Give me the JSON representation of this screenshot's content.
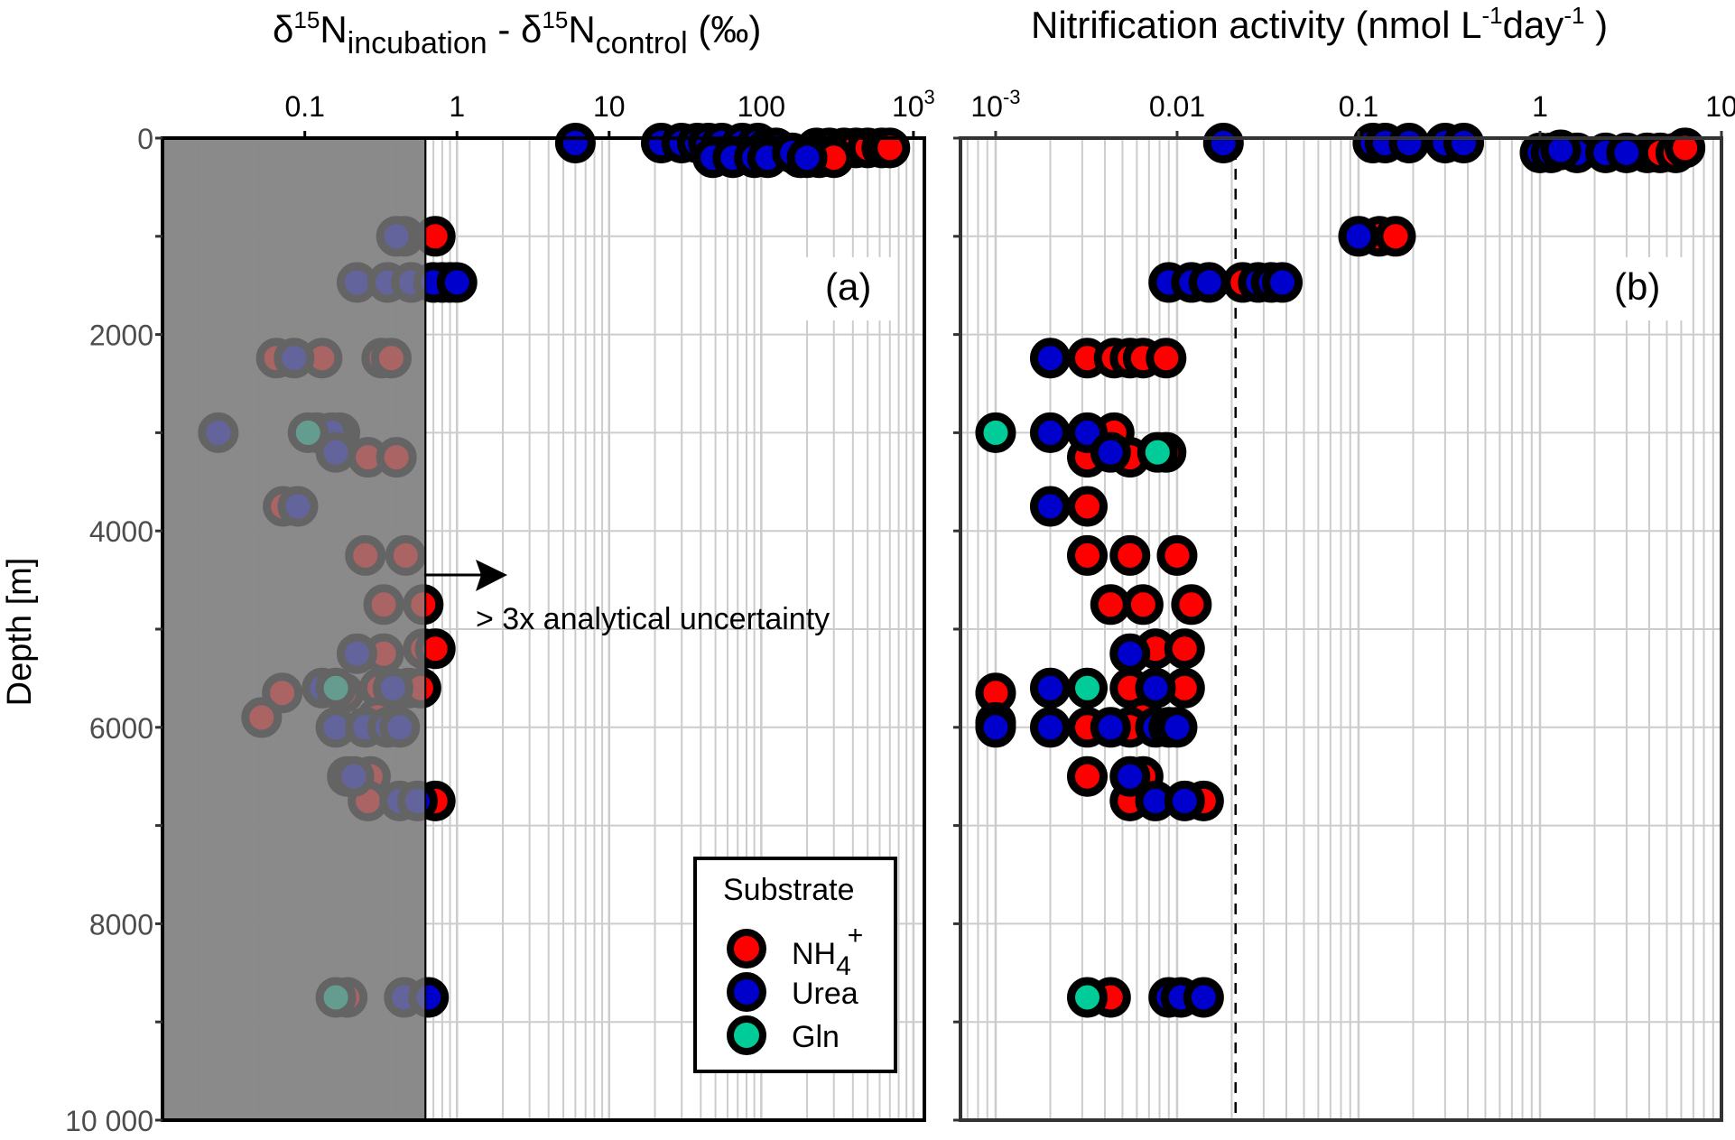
{
  "chart_data": [
    {
      "type": "scatter",
      "panel_label": "(a)",
      "title": "δ15N incubation - δ15N control (‰)",
      "title_parts": {
        "delta": "δ",
        "sup": "15",
        "N": "N",
        "sub1": "incubation",
        "mid": " - ",
        "sub2": "control",
        "unit": " (‰)"
      },
      "xlabel": "δ15N incubation - δ15N control (‰)",
      "ylabel": "Depth [m]",
      "xscale": "log",
      "xlim": [
        0.0116,
        1180
      ],
      "ylim": [
        0,
        10000
      ],
      "y_inverted": true,
      "x_axis_position": "top",
      "x_ticks": [
        {
          "v": 0.1,
          "label": "0.1"
        },
        {
          "v": 1,
          "label": "1"
        },
        {
          "v": 10,
          "label": "10"
        },
        {
          "v": 100,
          "label": "100"
        },
        {
          "v": 1000,
          "label": "10",
          "sup": "3"
        }
      ],
      "y_ticks": [
        {
          "v": 0,
          "label": "0"
        },
        {
          "v": 1000,
          "label": ""
        },
        {
          "v": 2000,
          "label": "2000"
        },
        {
          "v": 3000,
          "label": ""
        },
        {
          "v": 4000,
          "label": "4000"
        },
        {
          "v": 5000,
          "label": ""
        },
        {
          "v": 6000,
          "label": "6000"
        },
        {
          "v": 7000,
          "label": ""
        },
        {
          "v": 8000,
          "label": "8000"
        },
        {
          "v": 9000,
          "label": ""
        },
        {
          "v": 10000,
          "label": "10 000"
        }
      ],
      "grid": true,
      "shaded_region": {
        "x_from": 0.0116,
        "x_to": 0.62,
        "label": "below 3x analytical uncertainty"
      },
      "annotation": {
        "text": "> 3x analytical uncertainty",
        "arrow": "right"
      },
      "series": [
        {
          "name": "NH4+",
          "color": "#ff0000",
          "points": [
            [
              230,
              100
            ],
            [
              280,
              100
            ],
            [
              350,
              100
            ],
            [
              420,
              100
            ],
            [
              500,
              100
            ],
            [
              620,
              100
            ],
            [
              700,
              100
            ],
            [
              180,
              200
            ],
            [
              240,
              200
            ],
            [
              300,
              200
            ],
            [
              0.72,
              1000
            ],
            [
              0.8,
              1470
            ],
            [
              0.9,
              1470
            ],
            [
              0.065,
              2240
            ],
            [
              0.13,
              2240
            ],
            [
              0.32,
              2240
            ],
            [
              0.37,
              2240
            ],
            [
              0.17,
              3000
            ],
            [
              0.26,
              3250
            ],
            [
              0.4,
              3250
            ],
            [
              0.072,
              3750
            ],
            [
              0.25,
              4250
            ],
            [
              0.46,
              4250
            ],
            [
              0.33,
              4750
            ],
            [
              0.6,
              4750
            ],
            [
              0.33,
              5250
            ],
            [
              0.6,
              5200
            ],
            [
              0.72,
              5200
            ],
            [
              0.071,
              5650
            ],
            [
              0.18,
              5650
            ],
            [
              0.31,
              5600
            ],
            [
              0.48,
              5600
            ],
            [
              0.58,
              5600
            ],
            [
              0.3,
              5900
            ],
            [
              0.052,
              5900
            ],
            [
              0.19,
              6500
            ],
            [
              0.27,
              6500
            ],
            [
              0.26,
              6750
            ],
            [
              0.72,
              6750
            ],
            [
              0.19,
              8750
            ]
          ]
        },
        {
          "name": "Urea",
          "color": "#0000cc",
          "points": [
            [
              6,
              50
            ],
            [
              22,
              50
            ],
            [
              30,
              50
            ],
            [
              38,
              50
            ],
            [
              45,
              50
            ],
            [
              55,
              50
            ],
            [
              75,
              50
            ],
            [
              95,
              50
            ],
            [
              110,
              100
            ],
            [
              125,
              100
            ],
            [
              48,
              200
            ],
            [
              65,
              200
            ],
            [
              90,
              200
            ],
            [
              110,
              200
            ],
            [
              160,
              150
            ],
            [
              200,
              200
            ],
            [
              0.45,
              1000
            ],
            [
              0.4,
              1000
            ],
            [
              0.22,
              1470
            ],
            [
              0.35,
              1470
            ],
            [
              0.5,
              1470
            ],
            [
              0.7,
              1470
            ],
            [
              1.0,
              1470
            ],
            [
              0.085,
              2240
            ],
            [
              0.027,
              3000
            ],
            [
              0.12,
              3000
            ],
            [
              0.15,
              3000
            ],
            [
              0.16,
              3200
            ],
            [
              0.09,
              3750
            ],
            [
              0.22,
              5250
            ],
            [
              0.13,
              5600
            ],
            [
              0.38,
              5600
            ],
            [
              0.16,
              6000
            ],
            [
              0.25,
              6000
            ],
            [
              0.35,
              6000
            ],
            [
              0.42,
              6000
            ],
            [
              0.21,
              6500
            ],
            [
              0.42,
              6750
            ],
            [
              0.55,
              6750
            ],
            [
              0.45,
              8750
            ],
            [
              0.65,
              8750
            ]
          ]
        },
        {
          "name": "Gln",
          "color": "#00cc99",
          "points": [
            [
              0.105,
              3000
            ],
            [
              0.16,
              5600
            ],
            [
              0.16,
              8750
            ]
          ]
        }
      ]
    },
    {
      "type": "scatter",
      "panel_label": "(b)",
      "title": "Nitrification activity (nmol L-1 day-1 )",
      "title_parts": {
        "text1": "Nitrification activity (nmol L",
        "sup1": "-1",
        "text2": "day",
        "sup2": "-1",
        "text3": " )"
      },
      "xlabel": "Nitrification activity (nmol L-1 day-1)",
      "ylabel": "Depth [m]",
      "xscale": "log",
      "xlim": [
        0.00064,
        10
      ],
      "ylim": [
        0,
        10000
      ],
      "y_inverted": true,
      "x_axis_position": "top",
      "x_ticks": [
        {
          "v": 0.001,
          "label": "10",
          "sup": "-3"
        },
        {
          "v": 0.01,
          "label": "0.01"
        },
        {
          "v": 0.1,
          "label": "0.1"
        },
        {
          "v": 1,
          "label": "1"
        },
        {
          "v": 10,
          "label": "10"
        }
      ],
      "y_ticks": [
        0,
        1000,
        2000,
        3000,
        4000,
        5000,
        6000,
        7000,
        8000,
        9000,
        10000
      ],
      "grid": true,
      "reference_line": {
        "x": 0.021,
        "style": "dashed"
      },
      "series": [
        {
          "name": "NH4+",
          "color": "#ff0000",
          "points": [
            [
              3.9,
              150
            ],
            [
              4.6,
              150
            ],
            [
              5.6,
              150
            ],
            [
              6.3,
              100
            ],
            [
              0.13,
              1000
            ],
            [
              0.16,
              1000
            ],
            [
              0.023,
              1470
            ],
            [
              0.0032,
              2240
            ],
            [
              0.0045,
              2240
            ],
            [
              0.0055,
              2240
            ],
            [
              0.0065,
              2240
            ],
            [
              0.0087,
              2240
            ],
            [
              0.0045,
              3000
            ],
            [
              0.0032,
              3250
            ],
            [
              0.0055,
              3250
            ],
            [
              0.0087,
              3200
            ],
            [
              0.0032,
              3750
            ],
            [
              0.0032,
              4250
            ],
            [
              0.0055,
              4250
            ],
            [
              0.01,
              4250
            ],
            [
              0.0043,
              4750
            ],
            [
              0.0065,
              4750
            ],
            [
              0.012,
              4750
            ],
            [
              0.0076,
              5200
            ],
            [
              0.011,
              5200
            ],
            [
              0.001,
              5650
            ],
            [
              0.0055,
              5600
            ],
            [
              0.011,
              5600
            ],
            [
              0.0065,
              5900
            ],
            [
              0.001,
              5950
            ],
            [
              0.0032,
              6000
            ],
            [
              0.0055,
              6000
            ],
            [
              0.0032,
              6500
            ],
            [
              0.0065,
              6500
            ],
            [
              0.0055,
              6750
            ],
            [
              0.014,
              6750
            ],
            [
              0.0043,
              8750
            ]
          ]
        },
        {
          "name": "Urea",
          "color": "#0000cc",
          "points": [
            [
              0.018,
              50
            ],
            [
              0.12,
              50
            ],
            [
              0.14,
              50
            ],
            [
              0.19,
              50
            ],
            [
              0.3,
              50
            ],
            [
              0.38,
              50
            ],
            [
              1.0,
              150
            ],
            [
              1.15,
              150
            ],
            [
              1.6,
              150
            ],
            [
              2.3,
              150
            ],
            [
              3.0,
              150
            ],
            [
              1.3,
              120
            ],
            [
              0.1,
              1000
            ],
            [
              0.009,
              1470
            ],
            [
              0.012,
              1470
            ],
            [
              0.015,
              1470
            ],
            [
              0.028,
              1470
            ],
            [
              0.033,
              1470
            ],
            [
              0.038,
              1470
            ],
            [
              0.002,
              2240
            ],
            [
              0.002,
              3000
            ],
            [
              0.0032,
              3000
            ],
            [
              0.0043,
              3200
            ],
            [
              0.002,
              3750
            ],
            [
              0.0055,
              5250
            ],
            [
              0.002,
              5600
            ],
            [
              0.0076,
              5600
            ],
            [
              0.001,
              6000
            ],
            [
              0.002,
              6000
            ],
            [
              0.0043,
              6000
            ],
            [
              0.0076,
              6000
            ],
            [
              0.009,
              6000
            ],
            [
              0.01,
              6000
            ],
            [
              0.0055,
              6500
            ],
            [
              0.0076,
              6750
            ],
            [
              0.011,
              6750
            ],
            [
              0.009,
              8750
            ],
            [
              0.0105,
              8750
            ],
            [
              0.014,
              8750
            ]
          ]
        },
        {
          "name": "Gln",
          "color": "#00cc99",
          "points": [
            [
              0.001,
              3000
            ],
            [
              0.0078,
              3200
            ],
            [
              0.0032,
              5600
            ],
            [
              0.0032,
              8750
            ]
          ]
        }
      ]
    }
  ],
  "legend": {
    "title": "Substrate",
    "placement": "bottom-right of panel (a)",
    "entries": [
      {
        "label": "NH",
        "sub": "4",
        "sup": "+",
        "color": "#ff0000"
      },
      {
        "label": "Urea",
        "color": "#0000cc"
      },
      {
        "label": "Gln",
        "color": "#00cc99"
      }
    ]
  }
}
